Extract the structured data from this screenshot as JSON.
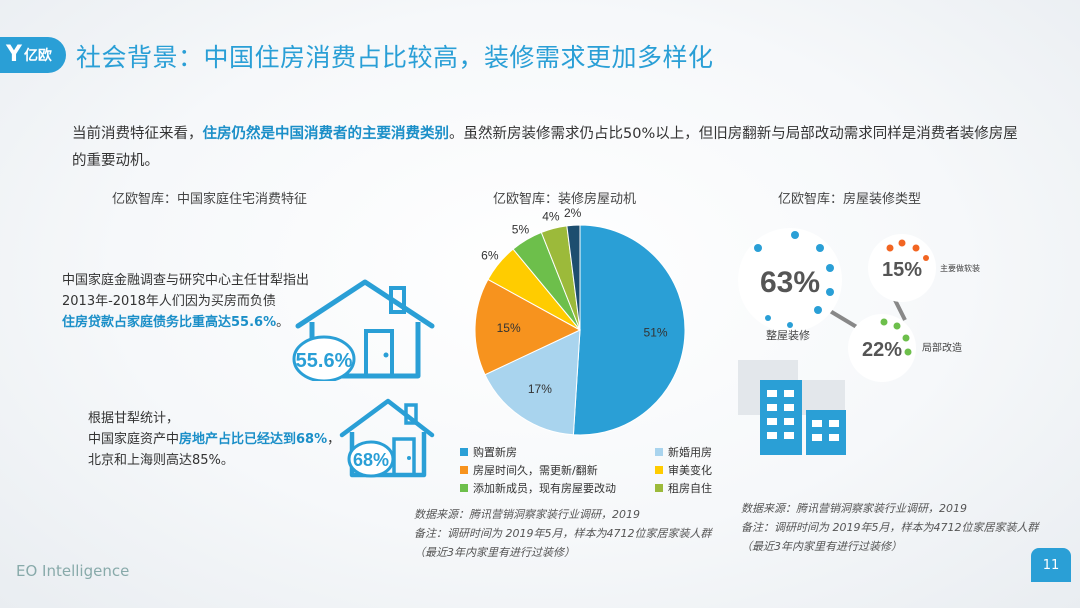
{
  "header": {
    "logo_text": "亿欧",
    "title": "社会背景：中国住房消费占比较高，装修需求更加多样化"
  },
  "intro": {
    "part1": "当前消费特征来看，",
    "highlight": "住房仍然是中国消费者的主要消费类别",
    "part2": "。虽然新房装修需求仍占比50%以上，但旧房翻新与局部改动需求同样是消费者装修房屋的重要动机。"
  },
  "left_panel": {
    "subtitle": "亿欧智库：中国家庭住宅消费特征",
    "note1_line1": "中国家庭金融调查与研究中心主任甘犁指出",
    "note1_line2": "2013年-2018年人们因为买房而负债",
    "note1_highlight": "住房贷款占家庭债务比重高达55.6%",
    "note1_end": "。",
    "house1_value": "55.6%",
    "note2_line1": "根据甘犁统计，",
    "note2_pre": "中国家庭资产中",
    "note2_highlight": "房地产占比已经达到68%",
    "note2_post": "，",
    "note2_line3": "北京和上海则高达85%。",
    "house2_value": "68%"
  },
  "center_panel": {
    "subtitle": "亿欧智库：装修房屋动机",
    "source_line1": "数据来源：腾讯营销洞察家装行业调研，2019",
    "source_line2": "备注：调研时间为 2019年5月，样本为4712位家居家装人群",
    "source_line3": "（最近3年内家里有进行过装修）"
  },
  "chart_data": {
    "type": "pie",
    "title": "亿欧智库：装修房屋动机",
    "slices": [
      {
        "label": "购置新房",
        "value": 51,
        "display": "51%",
        "color": "#2a9fd6"
      },
      {
        "label": "新婚用房",
        "value": 17,
        "display": "17%",
        "color": "#a9d4ee"
      },
      {
        "label": "房屋时间久，需更新/翻新",
        "value": 15,
        "display": "15%",
        "color": "#f7931e"
      },
      {
        "label": "审美变化",
        "value": 6,
        "display": "6%",
        "color": "#ffcc00"
      },
      {
        "label": "添加新成员，现有房屋要改动",
        "value": 5,
        "display": "5%",
        "color": "#6dbf4b"
      },
      {
        "label": "",
        "value": 4,
        "display": "4%",
        "color": "#9cba3a"
      },
      {
        "label": "租房自住",
        "value": 2,
        "display": "2%",
        "color": "#1d4e6f"
      }
    ],
    "legend_order": [
      "购置新房",
      "新婚用房",
      "房屋时间久，需更新/翻新",
      "审美变化",
      "添加新成员，现有房屋要改动",
      "租房自住"
    ]
  },
  "right_panel": {
    "subtitle": "亿欧智库：房屋装修类型",
    "bubbles": [
      {
        "value": "63%",
        "label": "整屋装修",
        "dot_color": "#2a9fd6"
      },
      {
        "value": "15%",
        "label": "主要做软装",
        "dot_color": "#f26522"
      },
      {
        "value": "22%",
        "label": "局部改造",
        "dot_color": "#6dbf4b"
      }
    ],
    "source_line1": "数据来源：腾讯营销洞察家装行业调研，2019",
    "source_line2": "备注：调研时间为 2019年5月，样本为4712位家居家装人群",
    "source_line3": "（最近3年内家里有进行过装修）"
  },
  "footer": {
    "brand": "EO Intelligence",
    "page_number": "11"
  }
}
